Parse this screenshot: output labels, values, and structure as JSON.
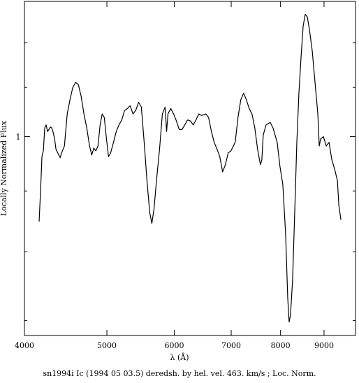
{
  "chart_data": {
    "type": "line",
    "xlabel": "λ (Å)",
    "ylabel": "Locally Normalized Flux",
    "caption": "sn1994i Ic (1994 05 03.5) deredsh. by hel. vel.   463. km/s ;  Loc. Norm.",
    "xscale": "log",
    "yscale": "log",
    "xlim": [
      4000,
      9800
    ],
    "ylim": [
      0.68,
      1.3
    ],
    "xticks": [
      4000,
      5000,
      6000,
      7000,
      8000,
      9000
    ],
    "yticks": [
      1
    ],
    "yminorticks": [
      0.7,
      0.8,
      0.9,
      1.1,
      1.2
    ],
    "color": "#000000",
    "x": [
      4162,
      4178,
      4194,
      4210,
      4226,
      4242,
      4258,
      4274,
      4291,
      4307,
      4324,
      4340,
      4356,
      4390,
      4406,
      4423,
      4457,
      4491,
      4524,
      4559,
      4594,
      4629,
      4664,
      4699,
      4735,
      4771,
      4799,
      4826,
      4853,
      4881,
      4909,
      4937,
      4965,
      4994,
      5022,
      5051,
      5090,
      5128,
      5166,
      5206,
      5245,
      5285,
      5325,
      5366,
      5406,
      5448,
      5489,
      5531,
      5573,
      5615,
      5647,
      5680,
      5723,
      5766,
      5810,
      5854,
      5877,
      5899,
      5944,
      5989,
      6035,
      6081,
      6127,
      6174,
      6220,
      6268,
      6316,
      6364,
      6412,
      6461,
      6535,
      6584,
      6635,
      6685,
      6736,
      6787,
      6839,
      6891,
      6943,
      6996,
      7076,
      7130,
      7184,
      7239,
      7294,
      7349,
      7405,
      7462,
      7518,
      7576,
      7605,
      7634,
      7692,
      7780,
      7839,
      7928,
      7989,
      8050,
      8111,
      8157,
      8188,
      8219,
      8266,
      8313,
      8361,
      8408,
      8456,
      8505,
      8553,
      8602,
      8651,
      8717,
      8783,
      8850,
      8884,
      8918,
      8985,
      9054,
      9122,
      9192,
      9262,
      9332,
      9368,
      9421
    ],
    "values": [
      0.848,
      0.899,
      0.962,
      0.973,
      1.017,
      1.023,
      1.01,
      1.014,
      1.019,
      1.017,
      1.008,
      0.996,
      0.976,
      0.965,
      0.96,
      0.969,
      0.982,
      1.045,
      1.074,
      1.1,
      1.111,
      1.106,
      1.081,
      1.045,
      1.017,
      0.982,
      0.965,
      0.978,
      0.973,
      0.982,
      1.023,
      1.045,
      1.038,
      0.996,
      0.962,
      0.969,
      0.989,
      1.01,
      1.023,
      1.033,
      1.052,
      1.056,
      1.062,
      1.045,
      1.052,
      1.069,
      1.059,
      0.989,
      0.918,
      0.863,
      0.845,
      0.869,
      0.924,
      0.976,
      1.045,
      1.059,
      1.01,
      1.045,
      1.056,
      1.045,
      1.031,
      1.014,
      1.014,
      1.023,
      1.033,
      1.031,
      1.023,
      1.033,
      1.045,
      1.042,
      1.045,
      1.038,
      1.01,
      0.989,
      0.976,
      0.962,
      0.934,
      0.947,
      0.969,
      0.973,
      0.989,
      1.038,
      1.074,
      1.088,
      1.074,
      1.056,
      1.045,
      1.017,
      0.976,
      0.947,
      0.956,
      1.003,
      1.023,
      1.028,
      1.017,
      0.989,
      0.943,
      0.911,
      0.828,
      0.732,
      0.698,
      0.708,
      0.758,
      0.863,
      0.989,
      1.088,
      1.165,
      1.239,
      1.268,
      1.261,
      1.231,
      1.181,
      1.111,
      1.045,
      0.982,
      0.996,
      1.0,
      0.982,
      0.989,
      0.956,
      0.939,
      0.918,
      0.875,
      0.851
    ]
  }
}
